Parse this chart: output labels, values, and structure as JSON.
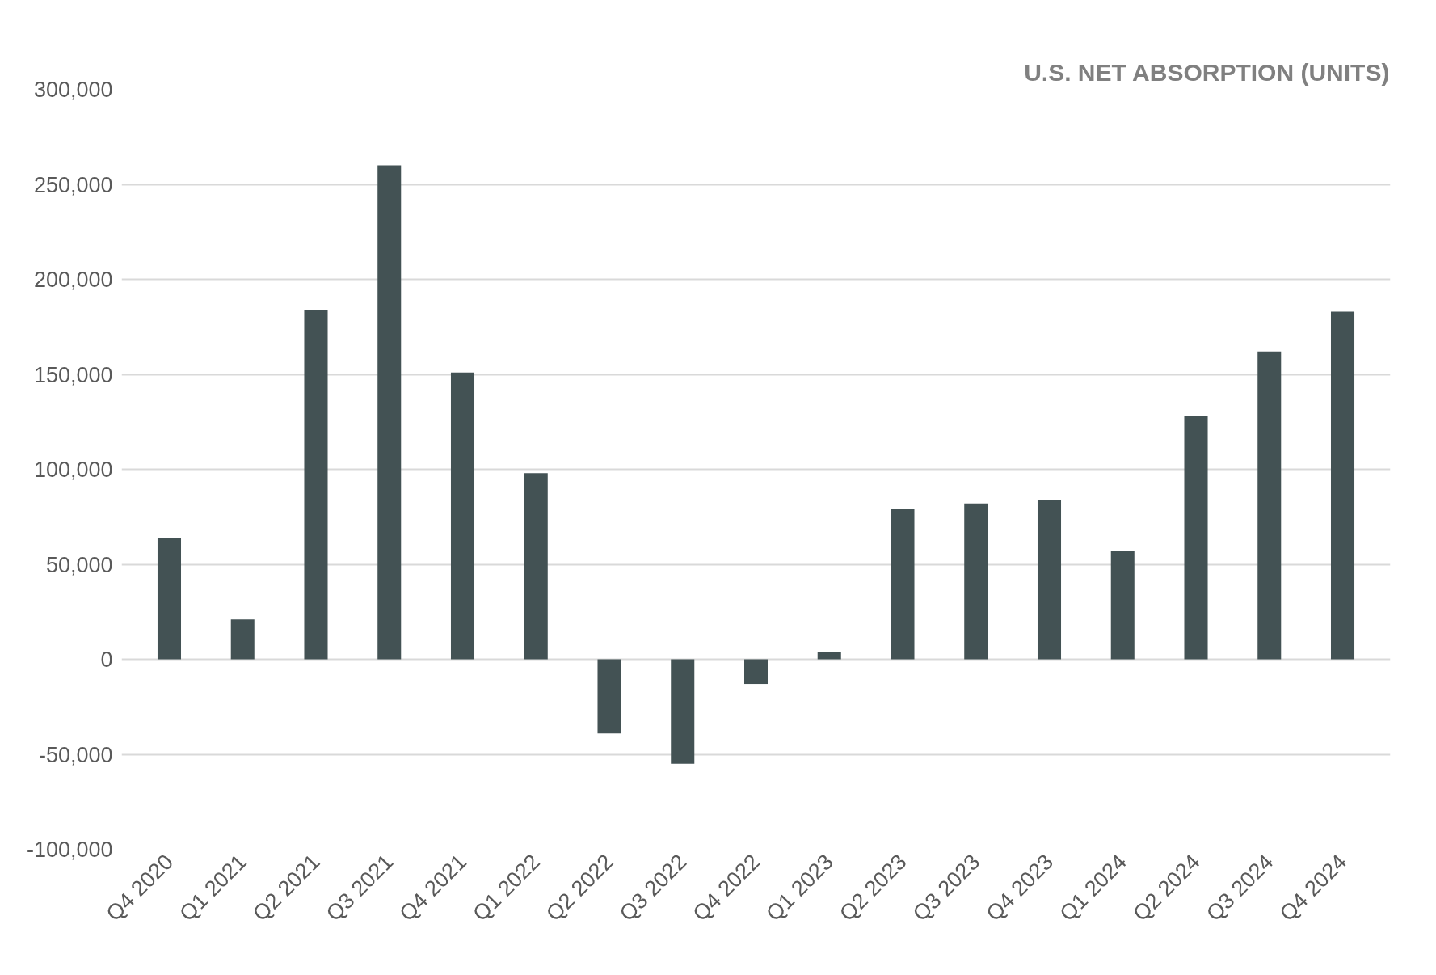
{
  "chart_data": {
    "type": "bar",
    "title": "U.S. NET ABSORPTION (UNITS)",
    "categories": [
      "Q4 2020",
      "Q1 2021",
      "Q2 2021",
      "Q3 2021",
      "Q4 2021",
      "Q1 2022",
      "Q2 2022",
      "Q3 2022",
      "Q4 2022",
      "Q1 2023",
      "Q2 2023",
      "Q3 2023",
      "Q4 2023",
      "Q1 2024",
      "Q2 2024",
      "Q3 2024",
      "Q4 2024"
    ],
    "values": [
      64000,
      21000,
      184000,
      260000,
      151000,
      98000,
      -39000,
      -55000,
      -13000,
      4000,
      79000,
      82000,
      84000,
      57000,
      128000,
      162000,
      183000
    ],
    "color": "#435254",
    "ylim": [
      -100000,
      300000
    ],
    "yticks": [
      {
        "value": -100000,
        "label": "-100,000"
      },
      {
        "value": -50000,
        "label": "-50,000"
      },
      {
        "value": 0,
        "label": "0"
      },
      {
        "value": 50000,
        "label": "50,000"
      },
      {
        "value": 100000,
        "label": "100,000"
      },
      {
        "value": 150000,
        "label": "150,000"
      },
      {
        "value": 200000,
        "label": "200,000"
      },
      {
        "value": 250000,
        "label": "250,000"
      },
      {
        "value": 300000,
        "label": "300,000"
      }
    ],
    "grid": "y"
  }
}
